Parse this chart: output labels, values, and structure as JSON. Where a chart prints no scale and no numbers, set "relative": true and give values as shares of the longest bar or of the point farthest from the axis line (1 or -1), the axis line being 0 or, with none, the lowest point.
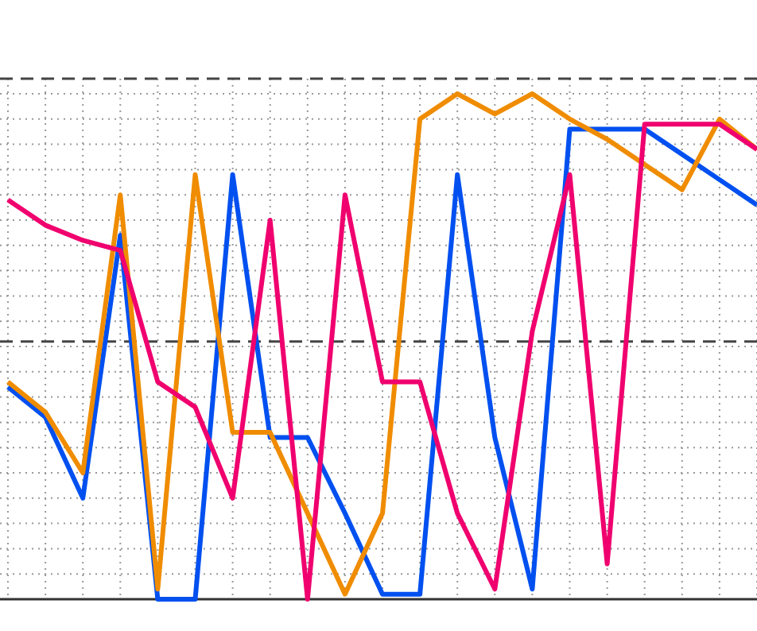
{
  "chart_data": {
    "type": "line",
    "relative": true,
    "categories": [
      null,
      null,
      null,
      null,
      null,
      null,
      null,
      null,
      null,
      null,
      null,
      null,
      null,
      null,
      null,
      null,
      null,
      null,
      null,
      null,
      null
    ],
    "grid": true,
    "marker": "none",
    "line_style": "solid",
    "series": [
      {
        "color": "#0050f0",
        "values": [
          0.42,
          0.36,
          0.2,
          0.72,
          0,
          0,
          0.84,
          0.32,
          0.32,
          0.17,
          0.01,
          0.01,
          0.84,
          0.32,
          0.02,
          0.93,
          0.93,
          0.93,
          0.88,
          0.83,
          0.78
        ]
      },
      {
        "color": "#f08c00",
        "values": [
          0.43,
          0.37,
          0.25,
          0.8,
          0.02,
          0.84,
          0.33,
          0.33,
          0.17,
          0.01,
          0.17,
          0.95,
          1.0,
          0.96,
          1.0,
          0.95,
          0.91,
          0.86,
          0.81,
          0.95,
          0.89
        ]
      },
      {
        "color": "#f0006e",
        "values": [
          0.79,
          0.74,
          0.71,
          0.69,
          0.43,
          0.38,
          0.2,
          0.75,
          0,
          0.8,
          0.43,
          0.43,
          0.17,
          0.02,
          0.53,
          0.84,
          0.07,
          0.94,
          0.94,
          0.94,
          0.89
        ]
      }
    ],
    "ref_lines": [
      {
        "axis": "y",
        "value": 0.51,
        "color": "#444444",
        "line_style": "dashed"
      },
      {
        "axis": "y",
        "value": 1.03,
        "color": "#444444",
        "line_style": "dashed"
      }
    ]
  }
}
